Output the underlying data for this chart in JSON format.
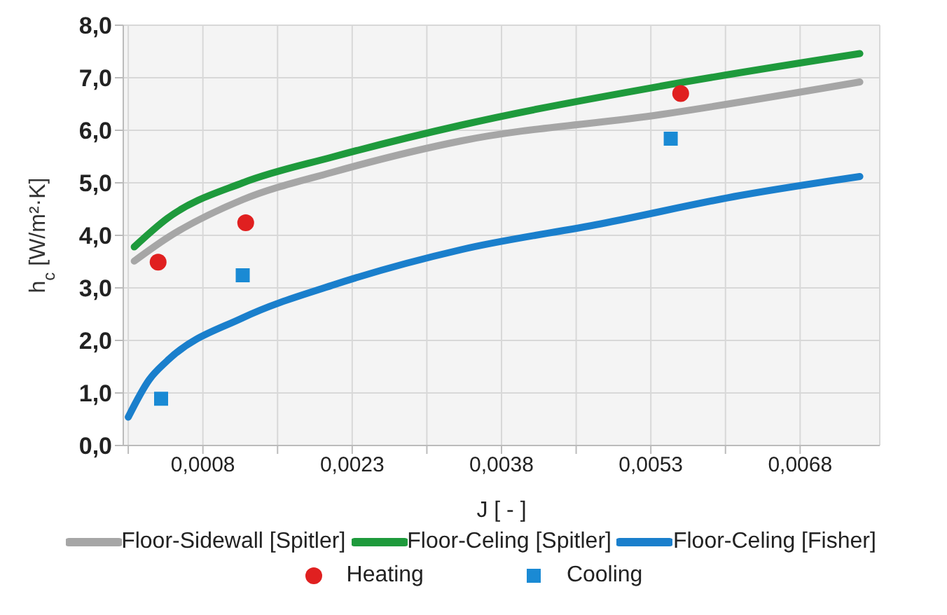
{
  "chart_data": {
    "type": "line",
    "xlabel": "J [ - ]",
    "ylabel": "h$_{c}$ [W/m²·K]",
    "xlim": [
      0,
      0.0076
    ],
    "ylim": [
      0,
      8
    ],
    "xticks": [
      {
        "value": 5e-05,
        "label": null
      },
      {
        "value": 0.0008,
        "label": "0,0008"
      },
      {
        "value": 0.00155,
        "label": null
      },
      {
        "value": 0.0023,
        "label": "0,0023"
      },
      {
        "value": 0.00305,
        "label": null
      },
      {
        "value": 0.0038,
        "label": "0,0038"
      },
      {
        "value": 0.00455,
        "label": null
      },
      {
        "value": 0.0053,
        "label": "0,0053"
      },
      {
        "value": 0.00605,
        "label": null
      },
      {
        "value": 0.0068,
        "label": "0,0068"
      }
    ],
    "yticks": [
      {
        "value": 0,
        "label": "0,0"
      },
      {
        "value": 1,
        "label": "1,0"
      },
      {
        "value": 2,
        "label": "2,0"
      },
      {
        "value": 3,
        "label": "3,0"
      },
      {
        "value": 4,
        "label": "4,0"
      },
      {
        "value": 5,
        "label": "5,0"
      },
      {
        "value": 6,
        "label": "6,0"
      },
      {
        "value": 7,
        "label": "7,0"
      },
      {
        "value": 8,
        "label": "8,0"
      }
    ],
    "grid": true,
    "legend": "bottom",
    "line_style": "solid",
    "series": [
      {
        "name": "Floor-Sidewall [Spitler]",
        "marker": "none",
        "color": "#a6a6a6",
        "x": [
          0.00011,
          0.00044,
          0.0012,
          0.0021,
          0.0034,
          0.0054,
          0.0074
        ],
        "values": [
          3.51,
          3.95,
          4.68,
          5.2,
          5.8,
          6.3,
          6.92
        ]
      },
      {
        "name": "Floor-Celing [Spitler]",
        "marker": "none",
        "color": "#1e9a3c",
        "x": [
          0.00011,
          0.00044,
          0.0012,
          0.0021,
          0.0034,
          0.0054,
          0.0074
        ],
        "values": [
          3.78,
          4.32,
          5.0,
          5.49,
          6.1,
          6.84,
          7.46
        ]
      },
      {
        "name": "Floor-Celing [Fisher]",
        "marker": "none",
        "color": "#1a7fcc",
        "x": [
          5e-05,
          0.00026,
          0.00044,
          0.0012,
          0.0021,
          0.0034,
          0.0048,
          0.0062,
          0.0074
        ],
        "values": [
          0.54,
          1.25,
          1.61,
          2.43,
          3.05,
          3.73,
          4.22,
          4.76,
          5.12
        ]
      },
      {
        "name": "Heating",
        "type": "scatter",
        "marker": "circle",
        "color": "#e02020",
        "x": [
          0.00035,
          0.00123,
          0.0056
        ],
        "values": [
          3.49,
          4.24,
          6.7
        ]
      },
      {
        "name": "Cooling",
        "type": "scatter",
        "marker": "square",
        "color": "#1a8ad4",
        "x": [
          0.00038,
          0.0012,
          0.0055
        ],
        "values": [
          0.89,
          3.24,
          5.84
        ]
      }
    ]
  }
}
